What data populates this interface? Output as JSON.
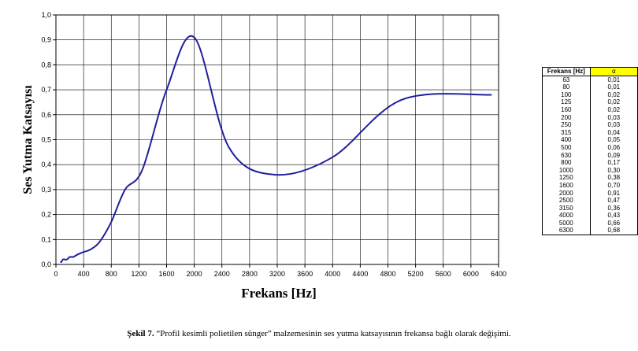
{
  "chart_data": {
    "type": "line",
    "xlabel": "Frekans [Hz]",
    "ylabel": "Ses Yutma Katsayısı",
    "xlim": [
      0,
      6400
    ],
    "ylim": [
      0,
      1.0
    ],
    "xticks": [
      "0",
      "400",
      "800",
      "1200",
      "1600",
      "2000",
      "2400",
      "2800",
      "3200",
      "3600",
      "4000",
      "4400",
      "4800",
      "5200",
      "5600",
      "6000",
      "6400"
    ],
    "yticks": [
      "0,0",
      "0,1",
      "0,2",
      "0,3",
      "0,4",
      "0,5",
      "0,6",
      "0,7",
      "0,8",
      "0,9",
      "1,0"
    ],
    "grid": true,
    "line_color": "#1f1f9f",
    "series": [
      {
        "x": [
          63,
          80,
          100,
          125,
          160,
          200,
          250,
          315,
          400,
          500,
          630,
          800,
          1000,
          1250,
          1600,
          2000,
          2500,
          3150,
          4000,
          5000,
          6300
        ],
        "y": [
          0.01,
          0.01,
          0.02,
          0.02,
          0.02,
          0.03,
          0.03,
          0.04,
          0.05,
          0.06,
          0.09,
          0.17,
          0.3,
          0.38,
          0.7,
          0.91,
          0.47,
          0.36,
          0.43,
          0.66,
          0.68
        ]
      }
    ]
  },
  "table": {
    "headers": [
      "Frekans [Hz]",
      "α"
    ],
    "rows": [
      [
        "63",
        "0,01"
      ],
      [
        "80",
        "0,01"
      ],
      [
        "100",
        "0,02"
      ],
      [
        "125",
        "0,02"
      ],
      [
        "160",
        "0,02"
      ],
      [
        "200",
        "0,03"
      ],
      [
        "250",
        "0,03"
      ],
      [
        "315",
        "0,04"
      ],
      [
        "400",
        "0,05"
      ],
      [
        "500",
        "0,06"
      ],
      [
        "630",
        "0,09"
      ],
      [
        "800",
        "0,17"
      ],
      [
        "1000",
        "0,30"
      ],
      [
        "1250",
        "0,38"
      ],
      [
        "1600",
        "0,70"
      ],
      [
        "2000",
        "0,91"
      ],
      [
        "2500",
        "0,47"
      ],
      [
        "3150",
        "0,36"
      ],
      [
        "4000",
        "0,43"
      ],
      [
        "5000",
        "0,66"
      ],
      [
        "6300",
        "0,68"
      ]
    ]
  },
  "caption": {
    "label": "Şekil 7.",
    "text": " “Profil kesimli polietilen sünger” malzemesinin ses yutma katsayısının frekansa bağlı olarak değişimi."
  }
}
